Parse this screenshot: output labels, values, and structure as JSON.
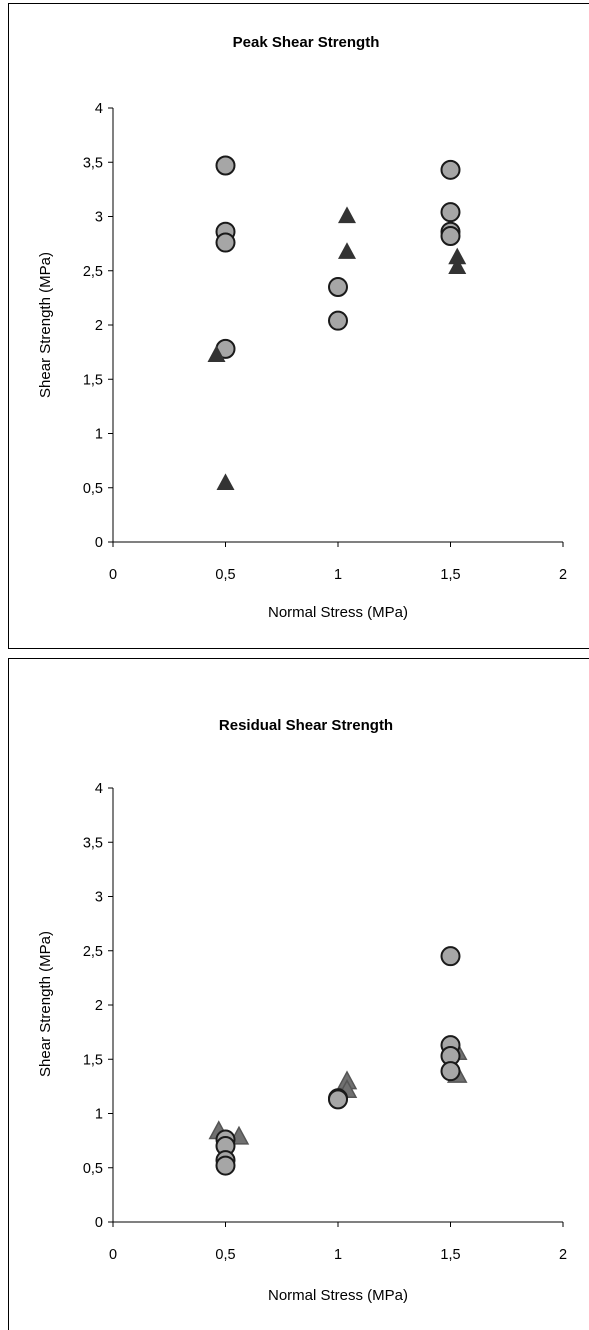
{
  "chart_data": [
    {
      "type": "scatter",
      "title": "Peak Shear Strength",
      "xlabel": "Normal Stress (MPa)",
      "ylabel": "Shear Strength (MPa)",
      "xlim": [
        0,
        2
      ],
      "ylim": [
        0,
        4
      ],
      "x_ticks": [
        "0",
        "0,5",
        "1",
        "1,5",
        "2"
      ],
      "y_ticks": [
        "0",
        "0,5",
        "1",
        "1,5",
        "2",
        "2,5",
        "3",
        "3,5",
        "4"
      ],
      "grid": false,
      "series": [
        {
          "marker": "circle",
          "color": "#a6a6a6",
          "points": [
            {
              "x": 0.5,
              "y": 3.47
            },
            {
              "x": 0.5,
              "y": 2.86
            },
            {
              "x": 0.5,
              "y": 2.76
            },
            {
              "x": 0.5,
              "y": 1.78
            },
            {
              "x": 1.0,
              "y": 2.35
            },
            {
              "x": 1.0,
              "y": 2.04
            },
            {
              "x": 1.5,
              "y": 3.43
            },
            {
              "x": 1.5,
              "y": 3.04
            },
            {
              "x": 1.5,
              "y": 2.86
            },
            {
              "x": 1.5,
              "y": 2.82
            }
          ]
        },
        {
          "marker": "triangle",
          "color": "#333333",
          "points": [
            {
              "x": 0.46,
              "y": 1.73
            },
            {
              "x": 0.5,
              "y": 0.55
            },
            {
              "x": 1.04,
              "y": 3.01
            },
            {
              "x": 1.04,
              "y": 2.68
            },
            {
              "x": 1.53,
              "y": 2.63
            },
            {
              "x": 1.53,
              "y": 2.54
            }
          ]
        }
      ]
    },
    {
      "type": "scatter",
      "title": "Residual Shear Strength",
      "xlabel": "Normal Stress (MPa)",
      "ylabel": "Shear Strength (MPa)",
      "xlim": [
        0,
        2
      ],
      "ylim": [
        0,
        4
      ],
      "x_ticks": [
        "0",
        "0,5",
        "1",
        "1,5",
        "2"
      ],
      "y_ticks": [
        "0",
        "0,5",
        "1",
        "1,5",
        "2",
        "2,5",
        "3",
        "3,5",
        "4"
      ],
      "grid": false,
      "series": [
        {
          "marker": "triangle",
          "color": "#707070",
          "points": [
            {
              "x": 0.47,
              "y": 0.84
            },
            {
              "x": 0.56,
              "y": 0.79
            },
            {
              "x": 1.04,
              "y": 1.3
            },
            {
              "x": 1.04,
              "y": 1.22
            },
            {
              "x": 1.53,
              "y": 1.57
            },
            {
              "x": 1.53,
              "y": 1.36
            }
          ]
        },
        {
          "marker": "circle",
          "color": "#a6a6a6",
          "points": [
            {
              "x": 0.5,
              "y": 0.76
            },
            {
              "x": 0.5,
              "y": 0.7
            },
            {
              "x": 0.5,
              "y": 0.57
            },
            {
              "x": 0.5,
              "y": 0.52
            },
            {
              "x": 1.0,
              "y": 1.14
            },
            {
              "x": 1.0,
              "y": 1.13
            },
            {
              "x": 1.5,
              "y": 2.45
            },
            {
              "x": 1.5,
              "y": 1.63
            },
            {
              "x": 1.5,
              "y": 1.53
            },
            {
              "x": 1.5,
              "y": 1.39
            }
          ]
        }
      ]
    }
  ]
}
